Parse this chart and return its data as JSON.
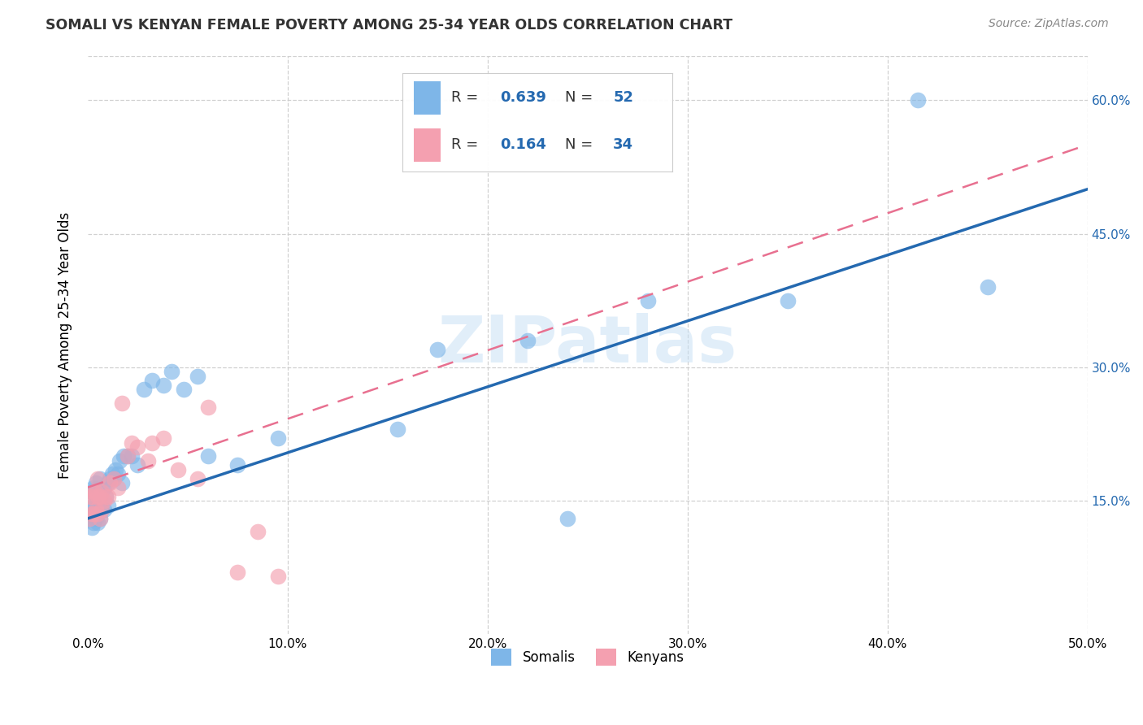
{
  "title": "SOMALI VS KENYAN FEMALE POVERTY AMONG 25-34 YEAR OLDS CORRELATION CHART",
  "source": "Source: ZipAtlas.com",
  "ylabel": "Female Poverty Among 25-34 Year Olds",
  "xlim": [
    0.0,
    0.5
  ],
  "ylim": [
    0.0,
    0.65
  ],
  "somali_R": 0.639,
  "somali_N": 52,
  "kenyan_R": 0.164,
  "kenyan_N": 34,
  "somali_color": "#7EB6E8",
  "kenyan_color": "#F4A0B0",
  "somali_line_color": "#2469B0",
  "kenyan_line_color": "#E87090",
  "text_blue": "#2469B0",
  "watermark": "ZIPatlas",
  "somali_line_x0": 0.0,
  "somali_line_y0": 0.13,
  "somali_line_x1": 0.5,
  "somali_line_y1": 0.5,
  "kenyan_line_x0": 0.0,
  "kenyan_line_y0": 0.165,
  "kenyan_line_x1": 0.5,
  "kenyan_line_y1": 0.55,
  "somali_x": [
    0.001,
    0.001,
    0.002,
    0.002,
    0.002,
    0.003,
    0.003,
    0.003,
    0.004,
    0.004,
    0.004,
    0.005,
    0.005,
    0.005,
    0.006,
    0.006,
    0.006,
    0.007,
    0.007,
    0.008,
    0.008,
    0.009,
    0.01,
    0.01,
    0.011,
    0.012,
    0.013,
    0.014,
    0.015,
    0.016,
    0.017,
    0.018,
    0.02,
    0.022,
    0.025,
    0.028,
    0.032,
    0.038,
    0.042,
    0.048,
    0.055,
    0.06,
    0.075,
    0.095,
    0.155,
    0.175,
    0.22,
    0.24,
    0.28,
    0.35,
    0.415,
    0.45
  ],
  "somali_y": [
    0.13,
    0.14,
    0.12,
    0.135,
    0.16,
    0.125,
    0.145,
    0.165,
    0.13,
    0.15,
    0.17,
    0.125,
    0.145,
    0.165,
    0.13,
    0.155,
    0.175,
    0.14,
    0.16,
    0.14,
    0.165,
    0.155,
    0.145,
    0.17,
    0.175,
    0.18,
    0.175,
    0.185,
    0.18,
    0.195,
    0.17,
    0.2,
    0.2,
    0.2,
    0.19,
    0.275,
    0.285,
    0.28,
    0.295,
    0.275,
    0.29,
    0.2,
    0.19,
    0.22,
    0.23,
    0.32,
    0.33,
    0.13,
    0.375,
    0.375,
    0.6,
    0.39
  ],
  "kenyan_x": [
    0.001,
    0.001,
    0.002,
    0.002,
    0.003,
    0.003,
    0.004,
    0.004,
    0.005,
    0.005,
    0.005,
    0.006,
    0.006,
    0.007,
    0.007,
    0.008,
    0.009,
    0.01,
    0.011,
    0.013,
    0.015,
    0.017,
    0.02,
    0.022,
    0.025,
    0.03,
    0.032,
    0.038,
    0.045,
    0.055,
    0.06,
    0.075,
    0.085,
    0.095
  ],
  "kenyan_y": [
    0.13,
    0.155,
    0.135,
    0.155,
    0.135,
    0.16,
    0.14,
    0.16,
    0.135,
    0.155,
    0.175,
    0.13,
    0.155,
    0.14,
    0.16,
    0.15,
    0.155,
    0.155,
    0.17,
    0.175,
    0.165,
    0.26,
    0.2,
    0.215,
    0.21,
    0.195,
    0.215,
    0.22,
    0.185,
    0.175,
    0.255,
    0.07,
    0.115,
    0.065
  ]
}
